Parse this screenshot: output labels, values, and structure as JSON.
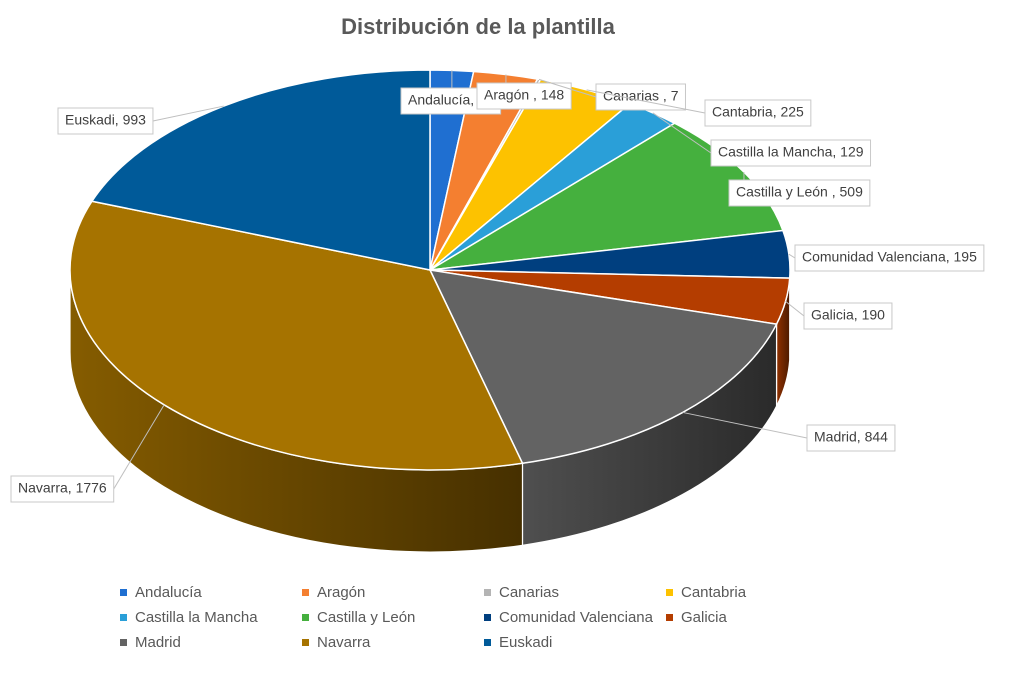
{
  "chart_data": {
    "type": "pie",
    "title": "Distribución de la plantilla",
    "slices": [
      {
        "label": "Andalucía",
        "value": 99,
        "color": "#1f6fd1",
        "data_label": "Andalucía, 99"
      },
      {
        "label": "Aragón",
        "value": 148,
        "color": "#f47f30",
        "data_label": "Aragón , 148"
      },
      {
        "label": "Canarias",
        "value": 7,
        "color": "#b4b4b4",
        "data_label": "Canarias , 7"
      },
      {
        "label": "Cantabria",
        "value": 225,
        "color": "#fdc200",
        "data_label": "Cantabria, 225"
      },
      {
        "label": "Castilla la Mancha",
        "value": 129,
        "color": "#2a9fd8",
        "data_label": "Castilla la Mancha, 129"
      },
      {
        "label": "Castilla y León",
        "value": 509,
        "color": "#45b03e",
        "data_label": "Castilla y León , 509"
      },
      {
        "label": "Comunidad Valenciana",
        "value": 195,
        "color": "#003f7f",
        "data_label": "Comunidad Valenciana, 195"
      },
      {
        "label": "Galicia",
        "value": 190,
        "color": "#b43d00",
        "data_label": "Galicia, 190"
      },
      {
        "label": "Madrid",
        "value": 844,
        "color": "#636363",
        "data_label": "Madrid, 844"
      },
      {
        "label": "Navarra",
        "value": 1776,
        "color": "#a67300",
        "data_label": "Navarra, 1776"
      },
      {
        "label": "Euskadi",
        "value": 993,
        "color": "#005a99",
        "data_label": "Euskadi, 993"
      }
    ],
    "legend_position": "bottom",
    "style": "3d-pie"
  }
}
